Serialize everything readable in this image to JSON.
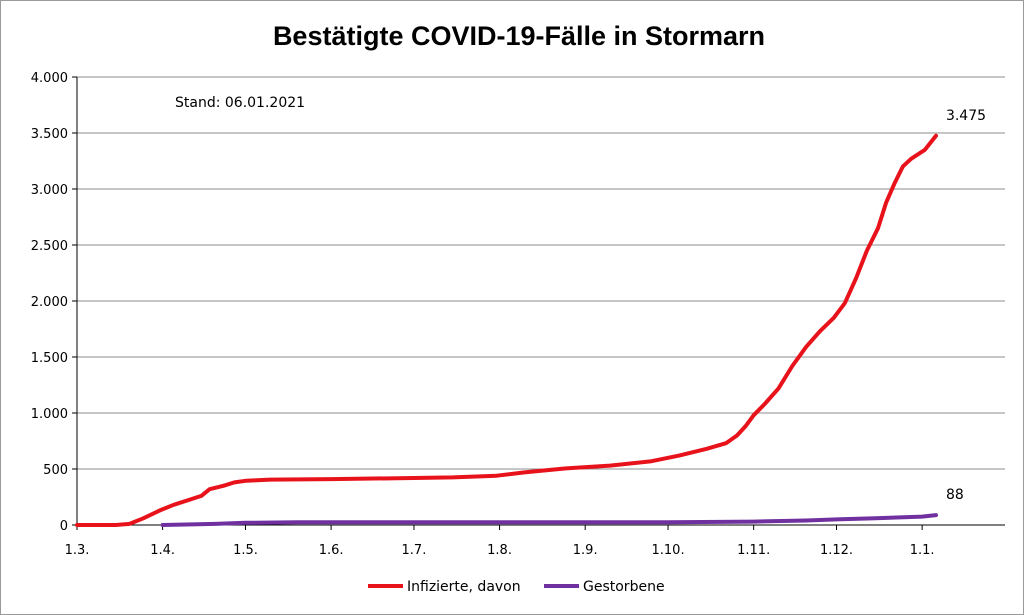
{
  "chart_data": {
    "type": "line",
    "title": "Bestätigte COVID-19-Fälle in Stormarn",
    "subtitle": "Stand: 06.01.2021",
    "xlabel": "",
    "ylabel": "",
    "ylim": [
      0,
      4000
    ],
    "y_ticks": [
      0,
      500,
      1000,
      1500,
      2000,
      2500,
      3000,
      3500,
      4000
    ],
    "y_tick_labels": [
      "0",
      "500",
      "1.000",
      "1.500",
      "2.000",
      "2.500",
      "3.000",
      "3.500",
      "4.000"
    ],
    "x_range": [
      "2020-03-01",
      "2021-01-31"
    ],
    "x_ticks": [
      "2020-03-01",
      "2020-04-01",
      "2020-05-01",
      "2020-06-01",
      "2020-07-01",
      "2020-08-01",
      "2020-09-01",
      "2020-10-01",
      "2020-11-01",
      "2020-12-01",
      "2021-01-01"
    ],
    "x_tick_labels": [
      "1.3.",
      "1.4.",
      "1.5.",
      "1.6.",
      "1.7.",
      "1.8.",
      "1.9.",
      "1.10.",
      "1.11.",
      "1.12.",
      "1.1."
    ],
    "grid": true,
    "legend_position": "bottom",
    "series": [
      {
        "name": "Infizierte, davon",
        "color": "#e8121b",
        "end_label": "3.475",
        "points": [
          [
            "2020-03-01",
            0
          ],
          [
            "2020-03-15",
            0
          ],
          [
            "2020-03-20",
            10
          ],
          [
            "2020-03-25",
            60
          ],
          [
            "2020-03-31",
            130
          ],
          [
            "2020-04-05",
            180
          ],
          [
            "2020-04-10",
            220
          ],
          [
            "2020-04-15",
            260
          ],
          [
            "2020-04-18",
            320
          ],
          [
            "2020-04-23",
            350
          ],
          [
            "2020-04-27",
            380
          ],
          [
            "2020-05-01",
            395
          ],
          [
            "2020-05-10",
            405
          ],
          [
            "2020-06-01",
            410
          ],
          [
            "2020-07-01",
            420
          ],
          [
            "2020-07-15",
            425
          ],
          [
            "2020-07-31",
            440
          ],
          [
            "2020-08-10",
            470
          ],
          [
            "2020-08-25",
            505
          ],
          [
            "2020-09-10",
            530
          ],
          [
            "2020-09-25",
            570
          ],
          [
            "2020-10-05",
            620
          ],
          [
            "2020-10-15",
            680
          ],
          [
            "2020-10-22",
            730
          ],
          [
            "2020-10-26",
            800
          ],
          [
            "2020-10-29",
            880
          ],
          [
            "2020-11-01",
            980
          ],
          [
            "2020-11-05",
            1080
          ],
          [
            "2020-11-10",
            1220
          ],
          [
            "2020-11-15",
            1420
          ],
          [
            "2020-11-20",
            1590
          ],
          [
            "2020-11-25",
            1730
          ],
          [
            "2020-11-30",
            1850
          ],
          [
            "2020-12-04",
            1980
          ],
          [
            "2020-12-08",
            2200
          ],
          [
            "2020-12-12",
            2450
          ],
          [
            "2020-12-16",
            2650
          ],
          [
            "2020-12-19",
            2880
          ],
          [
            "2020-12-22",
            3050
          ],
          [
            "2020-12-25",
            3200
          ],
          [
            "2020-12-28",
            3270
          ],
          [
            "2021-01-02",
            3350
          ],
          [
            "2021-01-06",
            3475
          ]
        ]
      },
      {
        "name": "Gestorbene",
        "color": "#7030a0",
        "end_label": "88",
        "points": [
          [
            "2020-04-01",
            0
          ],
          [
            "2020-04-20",
            10
          ],
          [
            "2020-05-01",
            20
          ],
          [
            "2020-05-20",
            25
          ],
          [
            "2020-07-01",
            25
          ],
          [
            "2020-10-01",
            25
          ],
          [
            "2020-11-01",
            30
          ],
          [
            "2020-11-20",
            40
          ],
          [
            "2020-12-01",
            50
          ],
          [
            "2020-12-15",
            60
          ],
          [
            "2021-01-01",
            75
          ],
          [
            "2021-01-06",
            88
          ]
        ]
      }
    ]
  }
}
